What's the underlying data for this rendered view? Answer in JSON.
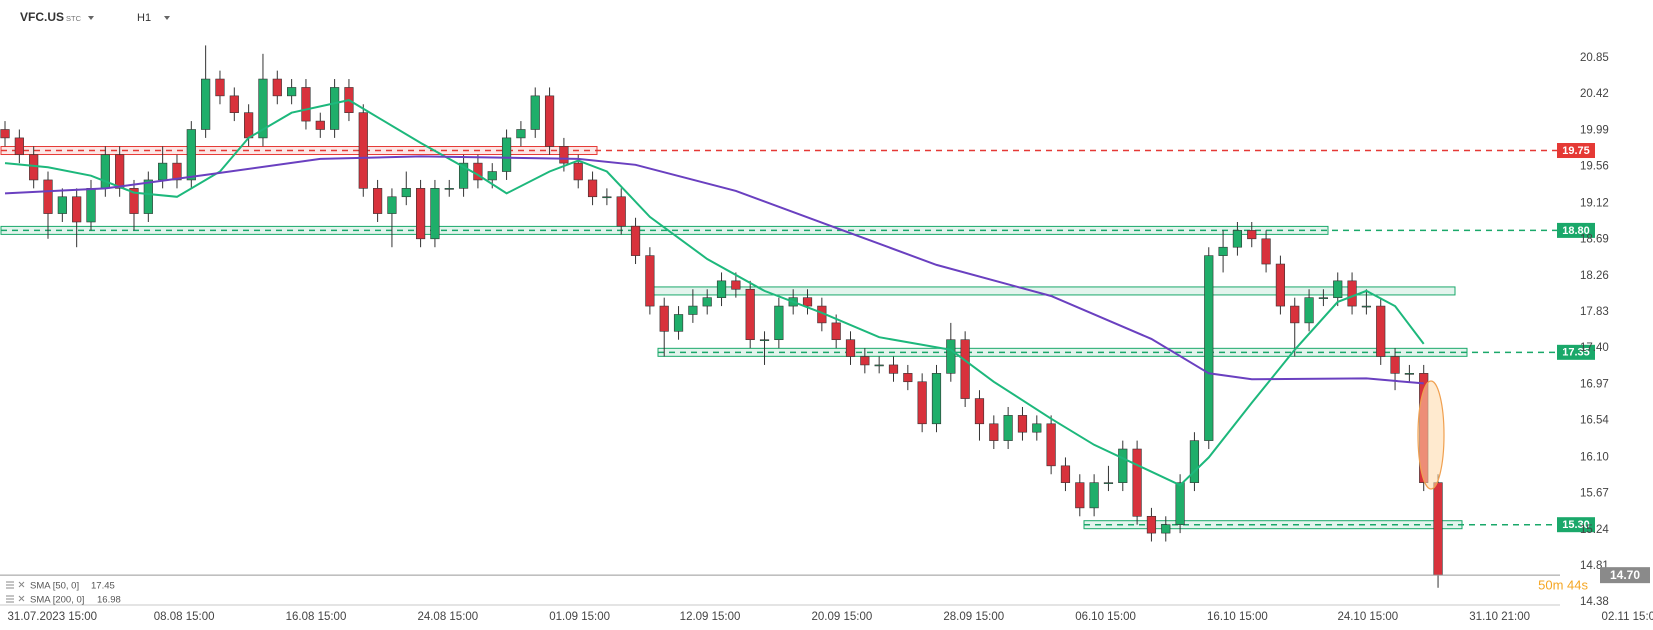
{
  "header": {
    "symbol": "VFC.US",
    "market": "STC",
    "interval": "H1"
  },
  "countdown": "50m 44s",
  "chart_data": {
    "type": "candlestick",
    "open": [
      20.0,
      19.9,
      19.7,
      19.4,
      19.0,
      19.2,
      18.9,
      19.3,
      19.7,
      19.3,
      19.0,
      19.4,
      19.6,
      19.4,
      20.0,
      20.6,
      20.4,
      20.2,
      19.9,
      20.6,
      20.4,
      20.5,
      20.1,
      20.0,
      20.5,
      20.2,
      19.3,
      19.0,
      19.2,
      19.3,
      18.7,
      19.3,
      19.3,
      19.6,
      19.4,
      19.5,
      19.9,
      20.0,
      20.4,
      19.8,
      19.6,
      19.4,
      19.2,
      19.2,
      18.85,
      18.5,
      17.9,
      17.6,
      17.8,
      17.9,
      18.0,
      18.2,
      18.1,
      17.5,
      17.5,
      17.9,
      18.0,
      17.9,
      17.7,
      17.5,
      17.3,
      17.2,
      17.2,
      17.1,
      17.0,
      16.5,
      17.1,
      17.5,
      16.8,
      16.5,
      16.3,
      16.6,
      16.4,
      16.5,
      16.0,
      15.8,
      15.5,
      15.8,
      15.8,
      16.2,
      15.4,
      15.2,
      15.3,
      15.8,
      16.3,
      18.5,
      18.6,
      18.8,
      18.7,
      18.4,
      17.9,
      17.7,
      18.0,
      18.0,
      18.2,
      17.9,
      17.9,
      17.3,
      17.1,
      17.1,
      15.8
    ],
    "high": [
      20.1,
      20.0,
      19.8,
      19.5,
      19.3,
      19.3,
      19.4,
      19.8,
      19.8,
      19.4,
      19.5,
      19.8,
      19.7,
      20.1,
      21.0,
      20.7,
      20.5,
      20.3,
      20.9,
      20.7,
      20.6,
      20.6,
      20.2,
      20.6,
      20.6,
      20.3,
      19.4,
      19.3,
      19.5,
      19.4,
      19.4,
      19.4,
      19.7,
      19.7,
      19.6,
      20.0,
      20.1,
      20.5,
      20.5,
      19.9,
      19.7,
      19.5,
      19.3,
      19.3,
      18.95,
      18.6,
      18.0,
      17.9,
      18.1,
      18.1,
      18.3,
      18.3,
      18.2,
      17.6,
      18.0,
      18.1,
      18.1,
      18.0,
      17.8,
      17.6,
      17.4,
      17.3,
      17.3,
      17.2,
      17.1,
      17.2,
      17.7,
      17.6,
      16.9,
      16.6,
      16.7,
      16.7,
      16.6,
      16.6,
      16.1,
      15.9,
      15.9,
      16.0,
      16.3,
      16.3,
      15.5,
      15.4,
      15.9,
      16.4,
      18.6,
      18.8,
      18.9,
      18.9,
      18.8,
      18.5,
      18.0,
      18.1,
      18.1,
      18.3,
      18.3,
      18.1,
      18.0,
      17.4,
      17.2,
      17.2,
      15.9
    ],
    "low": [
      19.8,
      19.6,
      19.3,
      18.7,
      18.9,
      18.6,
      18.8,
      19.2,
      19.2,
      18.8,
      18.9,
      19.3,
      19.3,
      19.3,
      19.9,
      20.3,
      20.1,
      19.8,
      19.8,
      20.3,
      20.3,
      20.0,
      19.9,
      19.9,
      20.1,
      19.2,
      18.9,
      18.6,
      19.1,
      18.6,
      18.6,
      19.2,
      19.2,
      19.3,
      19.3,
      19.4,
      19.8,
      19.9,
      19.7,
      19.5,
      19.3,
      19.1,
      19.1,
      18.75,
      18.4,
      17.8,
      17.3,
      17.5,
      17.7,
      17.8,
      17.9,
      18.0,
      17.4,
      17.2,
      17.4,
      17.8,
      17.8,
      17.6,
      17.4,
      17.2,
      17.1,
      17.1,
      17.0,
      16.9,
      16.4,
      16.4,
      17.0,
      16.7,
      16.3,
      16.2,
      16.2,
      16.3,
      16.3,
      15.9,
      15.7,
      15.4,
      15.4,
      15.7,
      15.7,
      15.3,
      15.1,
      15.1,
      15.2,
      15.7,
      16.2,
      18.3,
      18.5,
      18.6,
      18.3,
      17.8,
      17.3,
      17.6,
      17.9,
      17.9,
      17.8,
      17.8,
      17.2,
      16.9,
      17.0,
      15.7,
      14.55
    ],
    "close": [
      19.9,
      19.7,
      19.4,
      19.0,
      19.2,
      18.9,
      19.3,
      19.7,
      19.3,
      19.0,
      19.4,
      19.6,
      19.4,
      20.0,
      20.6,
      20.4,
      20.2,
      19.9,
      20.6,
      20.4,
      20.5,
      20.1,
      20.0,
      20.5,
      20.2,
      19.3,
      19.0,
      19.2,
      19.3,
      18.7,
      19.3,
      19.3,
      19.6,
      19.4,
      19.5,
      19.9,
      20.0,
      20.4,
      19.8,
      19.6,
      19.4,
      19.2,
      19.2,
      18.85,
      18.5,
      17.9,
      17.6,
      17.8,
      17.9,
      18.0,
      18.2,
      18.1,
      17.5,
      17.5,
      17.9,
      18.0,
      17.9,
      17.7,
      17.5,
      17.3,
      17.2,
      17.2,
      17.1,
      17.0,
      16.5,
      17.1,
      17.5,
      16.8,
      16.5,
      16.3,
      16.6,
      16.4,
      16.5,
      16.0,
      15.8,
      15.5,
      15.8,
      15.8,
      16.2,
      15.4,
      15.2,
      15.3,
      15.8,
      16.3,
      18.5,
      18.6,
      18.8,
      18.7,
      18.4,
      17.9,
      17.7,
      18.0,
      18.0,
      18.2,
      17.9,
      17.9,
      17.3,
      17.1,
      17.1,
      15.8,
      14.7
    ],
    "up_color": "#1fae6a",
    "down_color": "#d8323c",
    "series": [
      {
        "name": "SMA [50, 0]",
        "last": 17.45,
        "color": "#1db87c",
        "x": [
          0,
          3,
          6,
          9,
          12,
          15,
          17,
          20,
          24,
          29,
          33,
          35,
          38,
          40,
          42,
          45,
          49,
          53,
          57,
          61,
          66,
          69,
          73,
          76,
          80,
          82,
          84,
          87,
          90,
          93,
          95,
          97,
          99
        ],
        "values": [
          19.6,
          19.55,
          19.45,
          19.25,
          19.2,
          19.5,
          19.9,
          20.2,
          20.35,
          19.84,
          19.46,
          19.24,
          19.5,
          19.63,
          19.5,
          18.96,
          18.46,
          18.08,
          17.82,
          17.53,
          17.38,
          17.0,
          16.56,
          16.25,
          15.93,
          15.77,
          16.1,
          16.75,
          17.38,
          17.95,
          18.08,
          17.9,
          17.45
        ]
      },
      {
        "name": "SMA [200, 0]",
        "last": 16.98,
        "color": "#6a40c0",
        "x": [
          0,
          7,
          14,
          22,
          29,
          40,
          44,
          51,
          58,
          65,
          73,
          80,
          84,
          87,
          95,
          99
        ],
        "values": [
          19.24,
          19.3,
          19.46,
          19.65,
          19.68,
          19.65,
          19.58,
          19.27,
          18.83,
          18.39,
          18.02,
          17.51,
          17.1,
          17.03,
          17.04,
          16.98
        ]
      }
    ],
    "levels": [
      {
        "value": 19.75,
        "color": "#e53935"
      },
      {
        "value": 18.8,
        "label": "18.80",
        "color": "#1aa86a"
      },
      {
        "value": 17.35,
        "color": "#1aa86a"
      },
      {
        "value": 15.3,
        "label": "15.30",
        "color": "#1aa86a"
      }
    ],
    "zones": [
      {
        "value": 19.75,
        "color": "#e53935"
      },
      {
        "value": 18.8,
        "color": "#1aa86a"
      },
      {
        "value": 18.08,
        "color": "#1aa86a"
      },
      {
        "value": 17.35,
        "color": "#1aa86a"
      },
      {
        "value": 15.3,
        "color": "#1aa86a"
      }
    ],
    "last_price": {
      "value": 14.7,
      "label": "14.70"
    },
    "ylim": [
      14.345,
      21.54
    ],
    "yticks": [
      20.85,
      20.42,
      19.99,
      19.56,
      19.12,
      18.69,
      18.26,
      17.83,
      {
        "value": 17.4,
        "label": "17.40"
      },
      16.97,
      16.54,
      {
        "value": 16.1,
        "label": "16.10"
      },
      15.67,
      15.24,
      14.81,
      14.38
    ],
    "xlim": [
      -0.35,
      115
    ],
    "xticks": [
      {
        "value": 3.3,
        "label": "31.07.2023 15:00"
      },
      {
        "value": 12.5,
        "label": "08.08 15:00"
      },
      {
        "value": 21.7,
        "label": "16.08 15:00"
      },
      {
        "value": 30.9,
        "label": "24.08 15:00"
      },
      {
        "value": 40.1,
        "label": "01.09 15:00"
      },
      {
        "value": 49.2,
        "label": "12.09 15:00"
      },
      {
        "value": 58.4,
        "label": "20.09 15:00"
      },
      {
        "value": 67.6,
        "label": "28.09 15:00"
      },
      {
        "value": 76.8,
        "label": "06.10 15:00"
      },
      {
        "value": 86.0,
        "label": "16.10 15:00"
      },
      {
        "value": 95.1,
        "label": "24.10 15:00"
      },
      {
        "value": 104.3,
        "label": "31.10 21:00"
      },
      {
        "value": 113.5,
        "label": "02.11 15:00"
      }
    ]
  }
}
